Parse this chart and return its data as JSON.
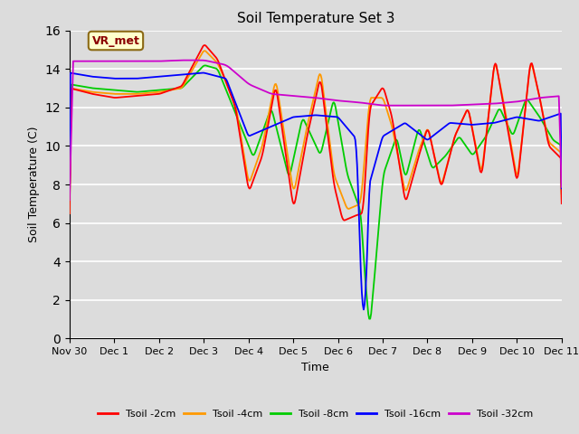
{
  "title": "Soil Temperature Set 3",
  "xlabel": "Time",
  "ylabel": "Soil Temperature (C)",
  "ylim": [
    0,
    16
  ],
  "yticks": [
    0,
    2,
    4,
    6,
    8,
    10,
    12,
    14,
    16
  ],
  "plot_bg_color": "#dcdcdc",
  "fig_bg_color": "#dcdcdc",
  "annotation_text": "VR_met",
  "annotation_bg": "#ffffcc",
  "annotation_border": "#8b6914",
  "colors": {
    "Tsoil -2cm": "#ff0000",
    "Tsoil -4cm": "#ff9900",
    "Tsoil -8cm": "#00cc00",
    "Tsoil -16cm": "#0000ff",
    "Tsoil -32cm": "#cc00cc"
  },
  "legend_labels": [
    "Tsoil -2cm",
    "Tsoil -4cm",
    "Tsoil -8cm",
    "Tsoil -16cm",
    "Tsoil -32cm"
  ],
  "xtick_labels": [
    "Nov 30",
    "Dec 1",
    "Dec 2",
    "Dec 3",
    "Dec 4",
    "Dec 5",
    "Dec 6",
    "Dec 7",
    "Dec 8",
    "Dec 9",
    "Dec 10",
    "Dec 11"
  ],
  "xtick_positions": [
    0,
    1,
    2,
    3,
    4,
    5,
    6,
    7,
    8,
    9,
    10,
    11
  ]
}
